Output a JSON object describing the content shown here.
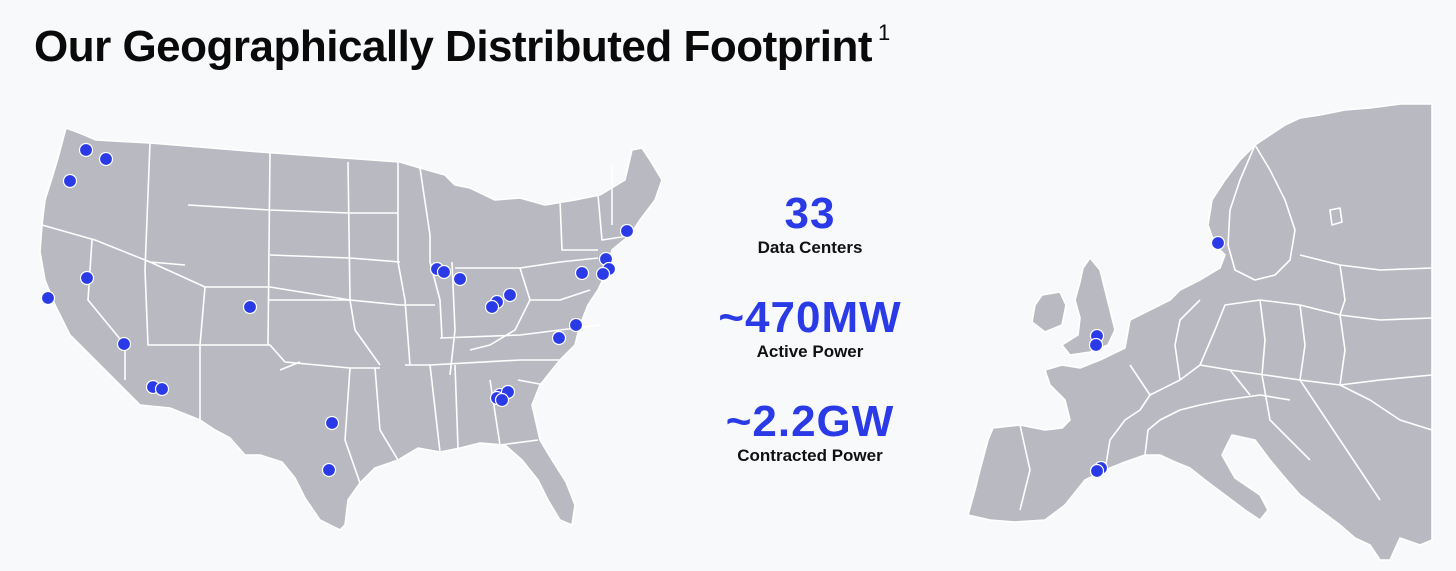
{
  "header": {
    "title": "Our Geographically Distributed Footprint",
    "footnote_marker": "1"
  },
  "stats": [
    {
      "value": "33",
      "label": "Data Centers"
    },
    {
      "value": "~470MW",
      "label": "Active Power"
    },
    {
      "value": "~2.2GW",
      "label": "Contracted Power"
    }
  ],
  "colors": {
    "accent": "#2a3ae6",
    "land": "#b9b9c2",
    "background": "#f8f9fb",
    "text": "#0a0a0a"
  },
  "maps": [
    "united-states",
    "europe"
  ]
}
